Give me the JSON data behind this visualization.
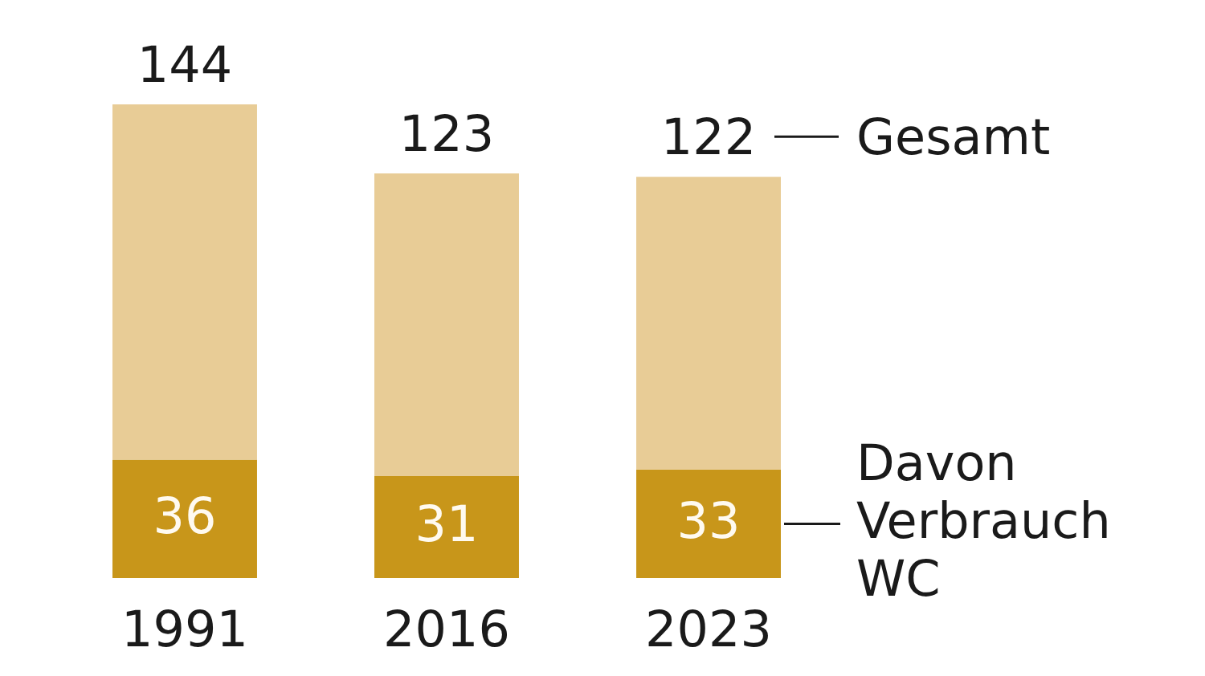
{
  "chart_data": {
    "type": "bar",
    "stacked": true,
    "categories": [
      "1991",
      "2016",
      "2023"
    ],
    "series": [
      {
        "name": "Davon Verbrauch WC",
        "color": "#c8961a",
        "values": [
          36,
          31,
          33
        ],
        "value_labels": [
          "36",
          "31",
          "33"
        ]
      },
      {
        "name": "Gesamt",
        "color": "#e8cc96",
        "values": [
          108,
          92,
          89
        ]
      }
    ],
    "totals": [
      "144",
      "123",
      "122"
    ]
  }
}
